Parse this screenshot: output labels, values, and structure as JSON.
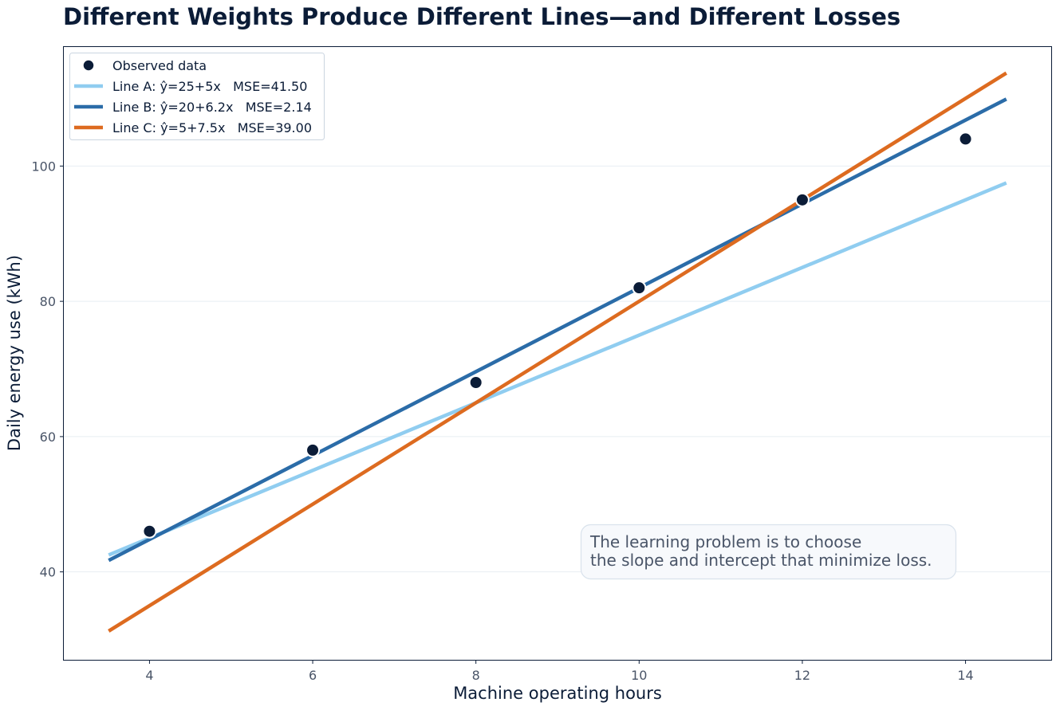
{
  "chart_data": {
    "type": "line",
    "title": "Different Weights Produce Different Lines—and Different Losses",
    "xlabel": "Machine operating hours",
    "ylabel": "Daily energy use (kWh)",
    "xlim": [
      2.95,
      15.05
    ],
    "ylim": [
      27,
      117.6
    ],
    "xticks": [
      4,
      6,
      8,
      10,
      12,
      14
    ],
    "yticks": [
      40,
      60,
      80,
      100
    ],
    "grid": "horizontal",
    "legend_position": "top-left",
    "observed": {
      "name": "Observed data",
      "color": "#0b1c37",
      "points": [
        {
          "x": 4,
          "y": 46
        },
        {
          "x": 6,
          "y": 58
        },
        {
          "x": 8,
          "y": 68
        },
        {
          "x": 10,
          "y": 82
        },
        {
          "x": 12,
          "y": 95
        },
        {
          "x": 14,
          "y": 104
        }
      ]
    },
    "series": [
      {
        "name": "Line A: ŷ=25+5x   MSE=41.50",
        "intercept": 25,
        "slope": 5,
        "color": "#90cdf0",
        "x_range": [
          3.5,
          14.5
        ]
      },
      {
        "name": "Line B: ŷ=20+6.2x   MSE=2.14",
        "intercept": 20,
        "slope": 6.2,
        "color": "#2b6ca8",
        "x_range": [
          3.5,
          14.5
        ]
      },
      {
        "name": "Line C: ŷ=5+7.5x   MSE=39.00",
        "intercept": 5,
        "slope": 7.5,
        "color": "#dd6b20",
        "x_range": [
          3.5,
          14.5
        ]
      }
    ],
    "annotation": {
      "lines": [
        "The learning problem is to choose",
        "the slope and intercept that minimize loss."
      ]
    }
  }
}
